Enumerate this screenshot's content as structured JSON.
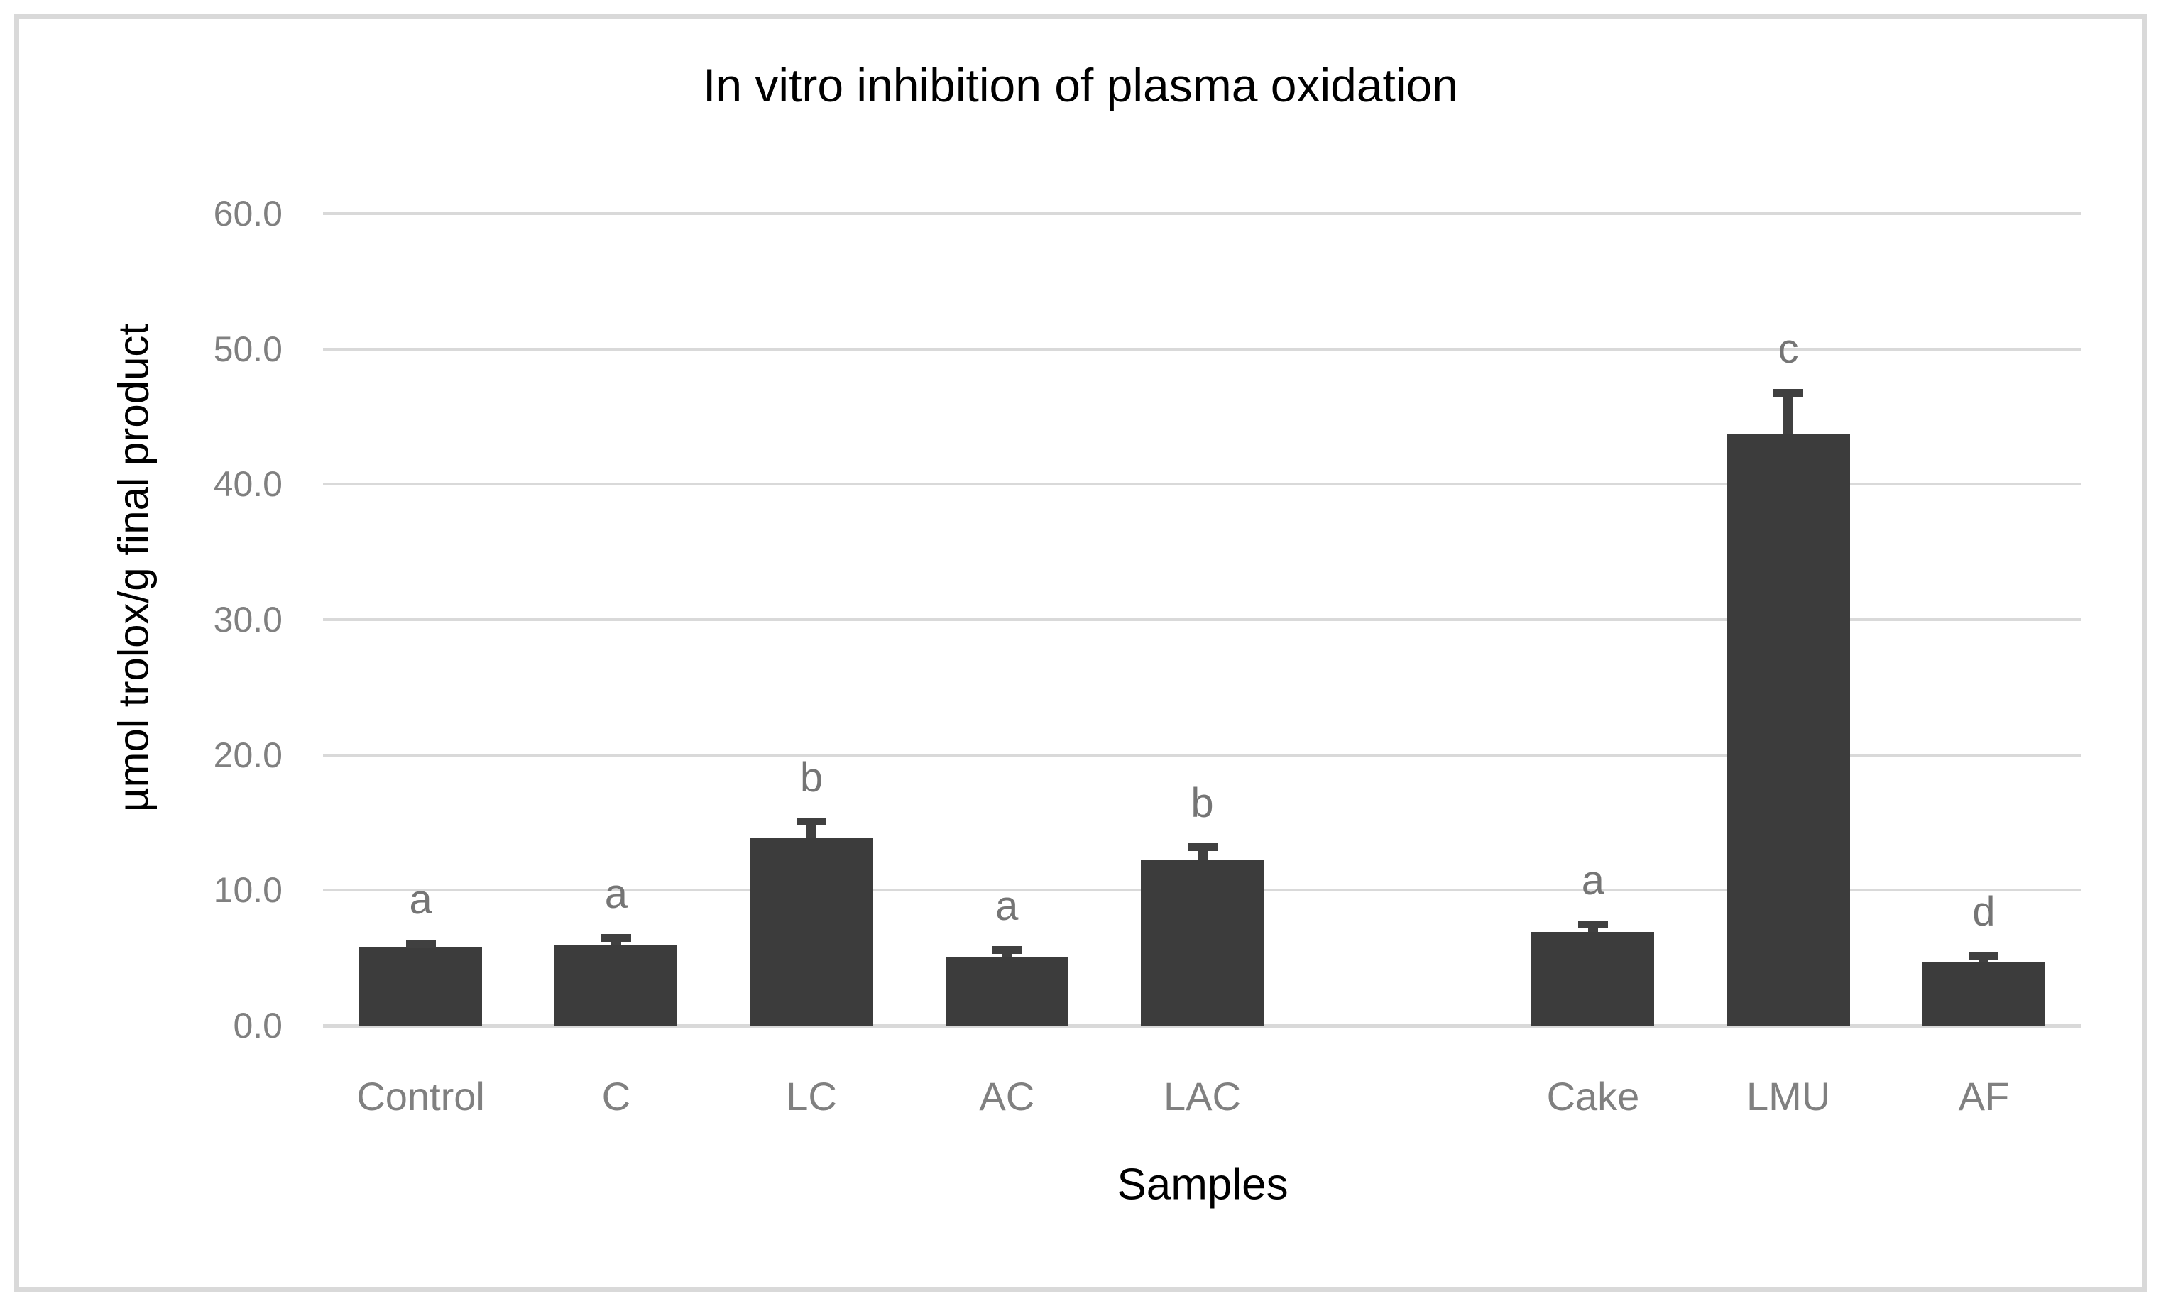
{
  "chart_data": {
    "type": "bar",
    "title": "In vitro inhibition of plasma oxidation",
    "xlabel": "Samples",
    "ylabel": "µmol trolox/g final product",
    "ylim": [
      0,
      60
    ],
    "ytick_interval": 10,
    "ytick_labels": [
      "0.0",
      "10.0",
      "20.0",
      "30.0",
      "40.0",
      "50.0",
      "60.0"
    ],
    "grid": "horizontal",
    "legend": "none",
    "categories": [
      "Control",
      "C",
      "LC",
      "AC",
      "LAC",
      "",
      "Cake",
      "LMU",
      "AF"
    ],
    "values": [
      5.8,
      6.0,
      13.9,
      5.1,
      12.2,
      null,
      6.9,
      43.7,
      4.7
    ],
    "error_bars": [
      0.3,
      0.5,
      1.2,
      0.5,
      1.0,
      null,
      0.6,
      3.1,
      0.5
    ],
    "significance_letters": [
      "a",
      "a",
      "b",
      "a",
      "b",
      null,
      "a",
      "c",
      "d"
    ]
  },
  "colors": {
    "bar": "#3c3c3c",
    "error_bar": "#404040",
    "gridline": "#d9d9d9",
    "axis_line": "#d9d9d9",
    "tick_label": "#808080",
    "category_label": "#808080",
    "significance_letter": "#757575",
    "title": "#000000",
    "axis_title": "#000000",
    "frame_border": "#d9d9d9",
    "background": "#ffffff"
  }
}
